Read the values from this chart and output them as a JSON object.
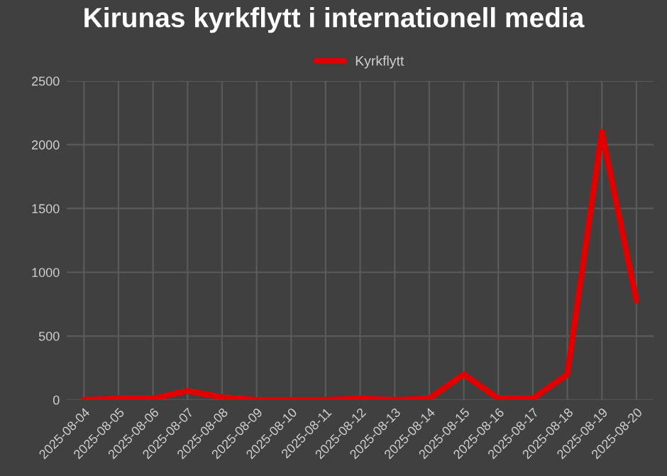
{
  "chart_data": {
    "type": "line",
    "title": "Kirunas kyrkflytt i internationell media",
    "categories": [
      "2025-08-04",
      "2025-08-05",
      "2025-08-06",
      "2025-08-07",
      "2025-08-08",
      "2025-08-09",
      "2025-08-10",
      "2025-08-11",
      "2025-08-12",
      "2025-08-13",
      "2025-08-14",
      "2025-08-15",
      "2025-08-16",
      "2025-08-17",
      "2025-08-18",
      "2025-08-19",
      "2025-08-20"
    ],
    "series": [
      {
        "name": "Kyrkflytt",
        "color": "#e00000",
        "values": [
          0,
          10,
          10,
          70,
          20,
          0,
          0,
          0,
          10,
          0,
          10,
          200,
          10,
          10,
          200,
          2100,
          780
        ]
      }
    ],
    "ylim": [
      0,
      2500
    ],
    "yticks": [
      0,
      500,
      1000,
      1500,
      2000,
      2500
    ],
    "grid": true,
    "legend": "top",
    "marker": "none",
    "line_style": "solid"
  }
}
